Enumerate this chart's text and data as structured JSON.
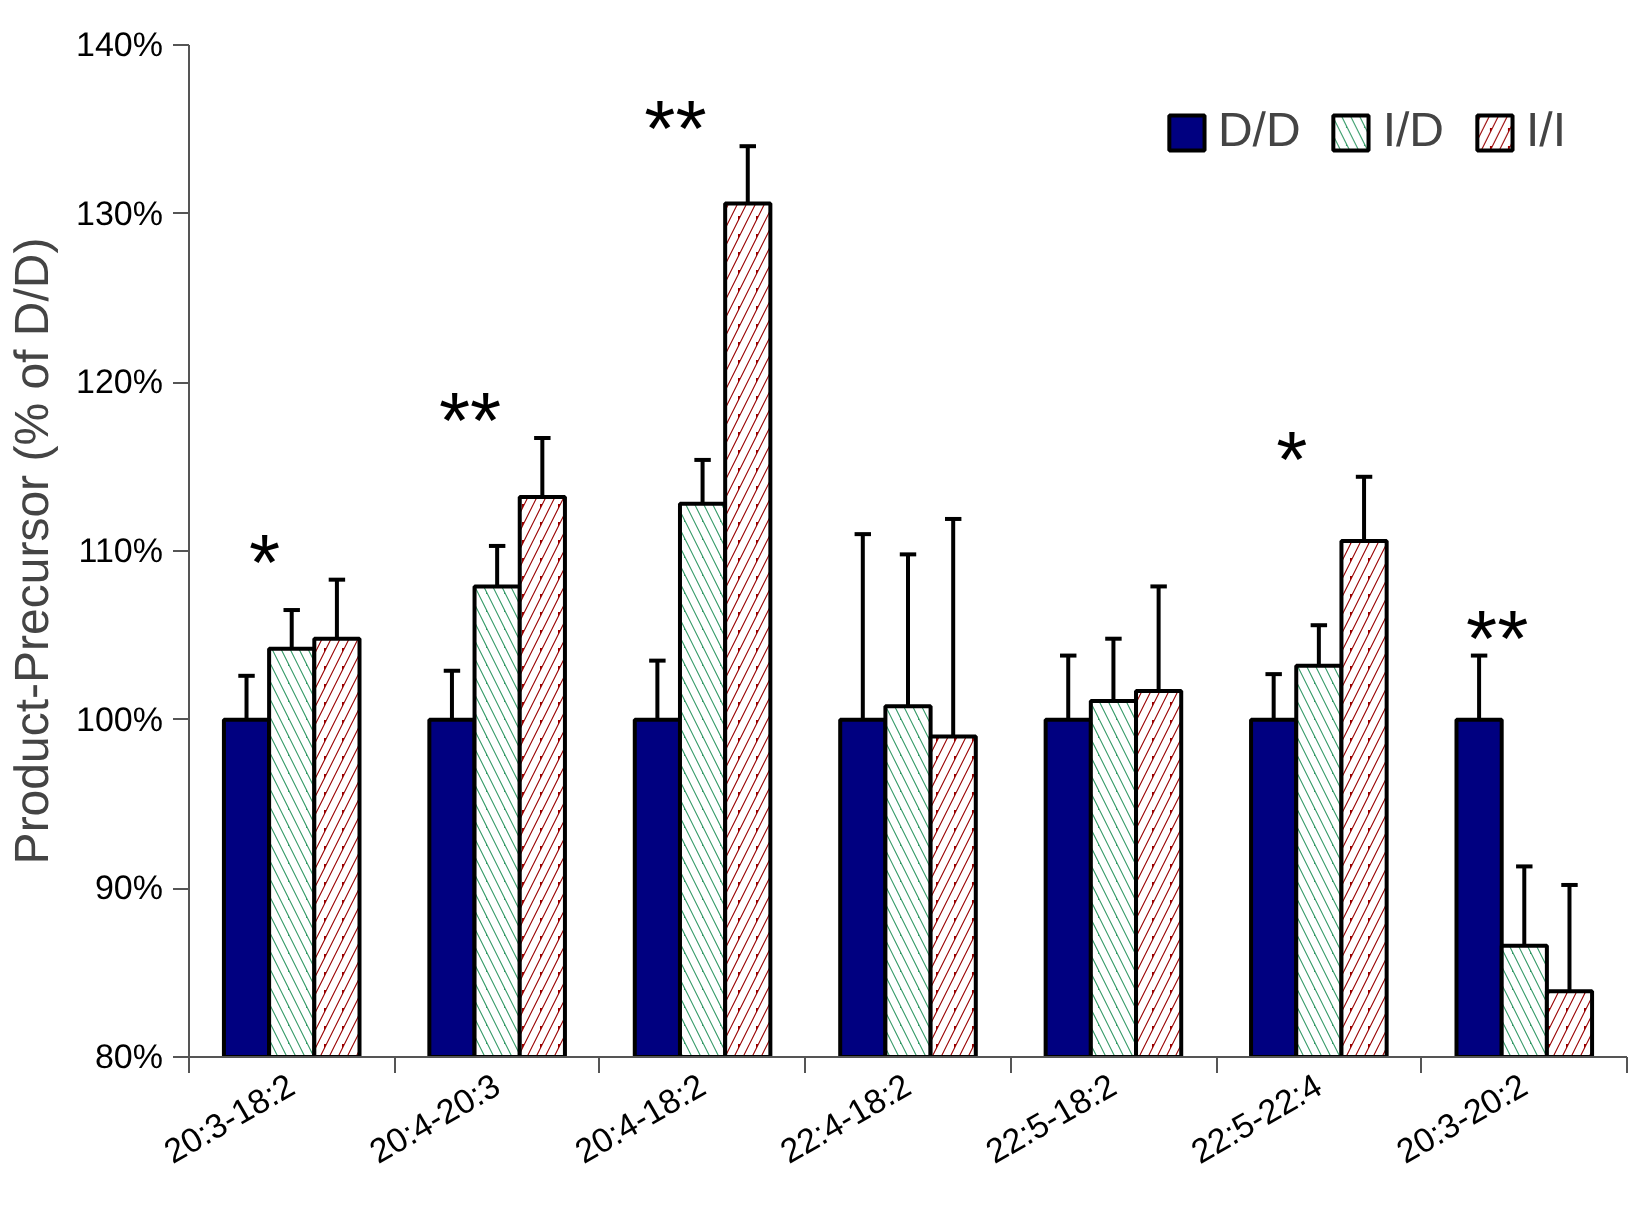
{
  "chart_data": {
    "type": "bar",
    "ylabel": "Product-Precursor (% of D/D)",
    "categories": [
      "20:3-18:2",
      "20:4-20:3",
      "20:4-18:2",
      "22:4-18:2",
      "22:5-18:2",
      "22:5-22:4",
      "20:3-20:2"
    ],
    "series": [
      {
        "name": "D/D",
        "color": "#000080",
        "values": [
          100,
          100,
          100,
          100,
          100,
          100,
          100
        ],
        "errors": [
          [
            100,
            102.6
          ],
          [
            100,
            102.9
          ],
          [
            100,
            103.5
          ],
          [
            100,
            111.0
          ],
          [
            100,
            103.8
          ],
          [
            100,
            102.7
          ],
          [
            100,
            103.8
          ]
        ]
      },
      {
        "name": "I/D",
        "color": "#339966",
        "values": [
          104.2,
          107.9,
          112.8,
          100.8,
          101.1,
          103.2,
          86.6
        ],
        "errors": [
          [
            104.2,
            106.5
          ],
          [
            107.9,
            110.3
          ],
          [
            112.8,
            115.4
          ],
          [
            100.8,
            109.8
          ],
          [
            101.1,
            104.8
          ],
          [
            103.2,
            105.6
          ],
          [
            86.6,
            91.3
          ]
        ]
      },
      {
        "name": "I/I",
        "color": "#990000",
        "values": [
          104.8,
          113.2,
          130.6,
          99.0,
          101.7,
          110.6,
          83.9
        ],
        "errors": [
          [
            104.8,
            108.3
          ],
          [
            113.2,
            116.7
          ],
          [
            130.6,
            134.0
          ],
          [
            99.0,
            111.9
          ],
          [
            101.7,
            107.9
          ],
          [
            110.6,
            114.4
          ],
          [
            83.9,
            90.2
          ]
        ]
      }
    ],
    "ylim": [
      80,
      140
    ],
    "yticks": [
      {
        "value": 80,
        "label": "80%"
      },
      {
        "value": 90,
        "label": "90%"
      },
      {
        "value": 100,
        "label": "100%"
      },
      {
        "value": 110,
        "label": "110%"
      },
      {
        "value": 120,
        "label": "120%"
      },
      {
        "value": 130,
        "label": "130%"
      },
      {
        "value": 140,
        "label": "140%"
      }
    ],
    "annotations": [
      "*",
      "**",
      "**",
      "*",
      "**"
    ],
    "grid": false,
    "legend": "top right"
  }
}
